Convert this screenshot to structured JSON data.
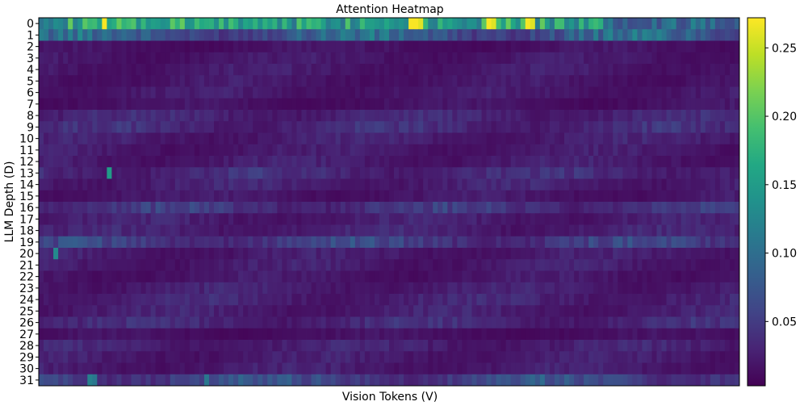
{
  "chart_data": {
    "type": "heatmap",
    "title": "Attention Heatmap",
    "xlabel": "Vision Tokens (V)",
    "ylabel": "LLM Depth (D)",
    "y_ticks": [
      "0",
      "1",
      "2",
      "3",
      "4",
      "5",
      "6",
      "7",
      "8",
      "9",
      "10",
      "11",
      "12",
      "13",
      "14",
      "15",
      "16",
      "17",
      "18",
      "19",
      "20",
      "21",
      "22",
      "23",
      "24",
      "25",
      "26",
      "27",
      "28",
      "29",
      "30",
      "31"
    ],
    "x_ticks": [],
    "n_columns": 144,
    "colormap": "viridis",
    "colorbar": {
      "ticks": [
        0.05,
        0.1,
        0.15,
        0.2,
        0.25
      ],
      "tick_labels": [
        "0.05",
        "0.10",
        "0.15",
        "0.20",
        "0.25"
      ],
      "min": 0.003,
      "max": 0.272
    },
    "row_means": [
      0.15,
      0.09,
      0.018,
      0.022,
      0.024,
      0.022,
      0.024,
      0.018,
      0.034,
      0.038,
      0.028,
      0.024,
      0.026,
      0.038,
      0.03,
      0.022,
      0.048,
      0.028,
      0.03,
      0.056,
      0.026,
      0.026,
      0.022,
      0.028,
      0.032,
      0.028,
      0.036,
      0.016,
      0.03,
      0.026,
      0.026,
      0.066
    ],
    "highlights": [
      {
        "row": 0,
        "col": 13,
        "value": 0.27
      },
      {
        "row": 0,
        "col": 76,
        "value": 0.27
      },
      {
        "row": 0,
        "col": 77,
        "value": 0.27
      },
      {
        "row": 0,
        "col": 78,
        "value": 0.26
      },
      {
        "row": 0,
        "col": 92,
        "value": 0.27
      },
      {
        "row": 0,
        "col": 93,
        "value": 0.26
      },
      {
        "row": 0,
        "col": 100,
        "value": 0.27
      },
      {
        "row": 0,
        "col": 101,
        "value": 0.26
      },
      {
        "row": 13,
        "col": 14,
        "value": 0.15
      },
      {
        "row": 20,
        "col": 3,
        "value": 0.13
      },
      {
        "row": 31,
        "col": 10,
        "value": 0.12
      },
      {
        "row": 31,
        "col": 11,
        "value": 0.11
      },
      {
        "row": 31,
        "col": 34,
        "value": 0.11
      }
    ]
  }
}
